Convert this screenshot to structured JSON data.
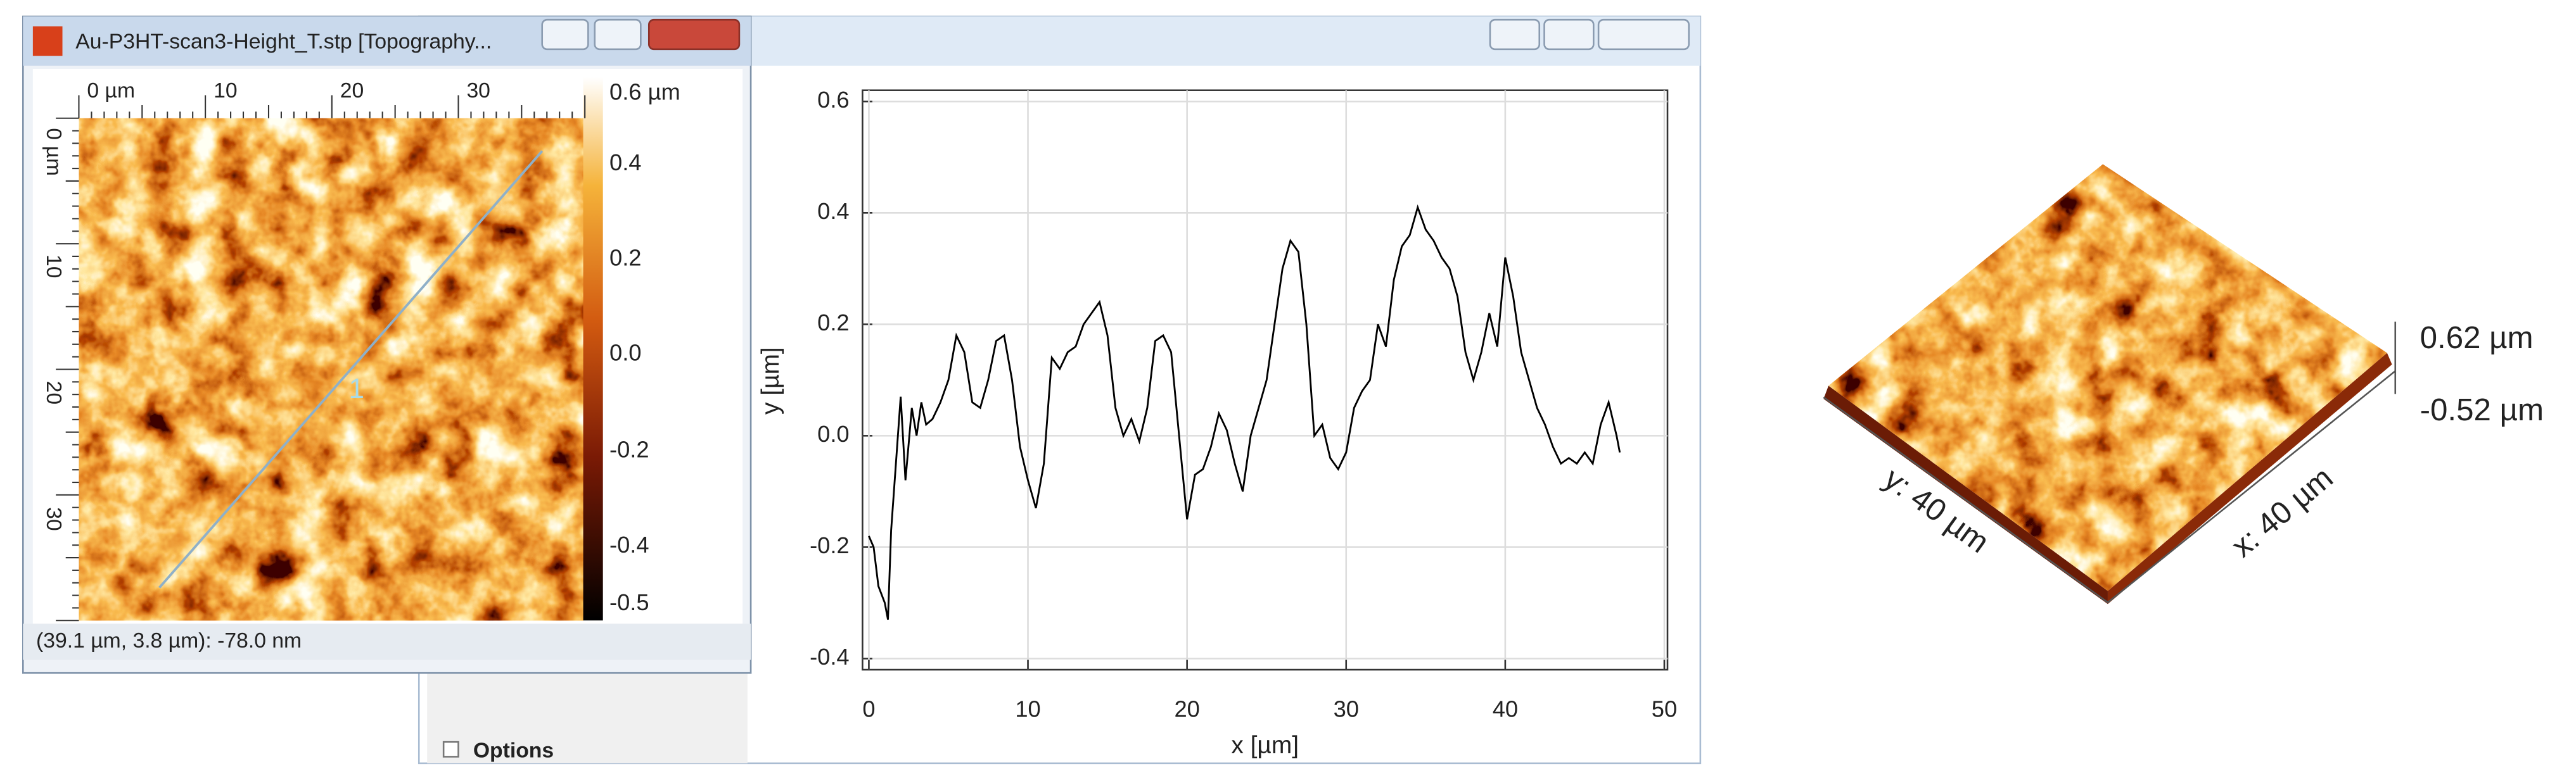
{
  "window": {
    "title": "Au-P3HT-scan3-Height_T.stp [Topography...",
    "status": "(39.1 µm, 3.8 µm): -78.0 nm"
  },
  "image": {
    "x_ruler": [
      "0 µm",
      "10",
      "20",
      "30"
    ],
    "y_ruler": [
      "0 µm",
      "10",
      "20",
      "30"
    ],
    "colorbar_ticks": [
      "0.6 µm",
      "0.4",
      "0.2",
      "0.0",
      "-0.2",
      "-0.4",
      "-0.5"
    ],
    "profile_label": "1"
  },
  "options_label": "Options",
  "chart_data": {
    "type": "line",
    "xlabel": "x [µm]",
    "ylabel": "y [µm]",
    "x": [
      0,
      0.3,
      0.6,
      1,
      1.2,
      1.4,
      1.7,
      2,
      2.3,
      2.7,
      3,
      3.3,
      3.6,
      4,
      4.5,
      5,
      5.5,
      6,
      6.5,
      7,
      7.5,
      8,
      8.5,
      9,
      9.5,
      10,
      10.5,
      11,
      11.5,
      12,
      12.5,
      13,
      13.5,
      14,
      14.5,
      15,
      15.5,
      16,
      16.5,
      17,
      17.5,
      18,
      18.5,
      19,
      19.5,
      20,
      20.5,
      21,
      21.5,
      22,
      22.5,
      23,
      23.5,
      24,
      24.5,
      25,
      25.5,
      26,
      26.5,
      27,
      27.5,
      28,
      28.5,
      29,
      29.5,
      30,
      30.5,
      31,
      31.5,
      32,
      32.5,
      33,
      33.5,
      34,
      34.5,
      35,
      35.5,
      36,
      36.5,
      37,
      37.5,
      38,
      38.5,
      39,
      39.5,
      40,
      40.5,
      41,
      41.5,
      42,
      42.5,
      43,
      43.5,
      44,
      44.5,
      45,
      45.5,
      46,
      46.5,
      47,
      47.2
    ],
    "series": [
      {
        "color": "#000000",
        "values": [
          -0.18,
          -0.2,
          -0.27,
          -0.3,
          -0.33,
          -0.17,
          -0.05,
          0.07,
          -0.08,
          0.05,
          0.0,
          0.06,
          0.02,
          0.03,
          0.06,
          0.1,
          0.18,
          0.15,
          0.06,
          0.05,
          0.1,
          0.17,
          0.18,
          0.1,
          -0.02,
          -0.08,
          -0.13,
          -0.05,
          0.14,
          0.12,
          0.15,
          0.16,
          0.2,
          0.22,
          0.24,
          0.18,
          0.05,
          0.0,
          0.03,
          -0.01,
          0.05,
          0.17,
          0.18,
          0.15,
          0.0,
          -0.15,
          -0.07,
          -0.06,
          -0.02,
          0.04,
          0.01,
          -0.05,
          -0.1,
          0.0,
          0.05,
          0.1,
          0.2,
          0.3,
          0.35,
          0.33,
          0.2,
          0.0,
          0.02,
          -0.04,
          -0.06,
          -0.03,
          0.05,
          0.08,
          0.1,
          0.2,
          0.16,
          0.28,
          0.34,
          0.36,
          0.41,
          0.37,
          0.35,
          0.32,
          0.3,
          0.25,
          0.15,
          0.1,
          0.15,
          0.22,
          0.16,
          0.32,
          0.25,
          0.15,
          0.1,
          0.05,
          0.02,
          -0.02,
          -0.05,
          -0.04,
          -0.05,
          -0.03,
          -0.05,
          0.02,
          0.06,
          0.0,
          -0.03
        ]
      }
    ],
    "xlim": [
      -0.4,
      50.2
    ],
    "ylim": [
      -0.42,
      0.62
    ],
    "xticks": [
      0,
      10,
      20,
      30,
      40,
      50
    ],
    "yticks": [
      0.6,
      0.4,
      0.2,
      {
        "value": 0,
        "label": "0.0"
      },
      -0.2,
      -0.4
    ],
    "grid": true
  },
  "view3d": {
    "z_max": "0.62 µm",
    "z_min": "-0.52 µm",
    "y_axis": "y: 40 µm",
    "x_axis": "x: 40 µm"
  }
}
